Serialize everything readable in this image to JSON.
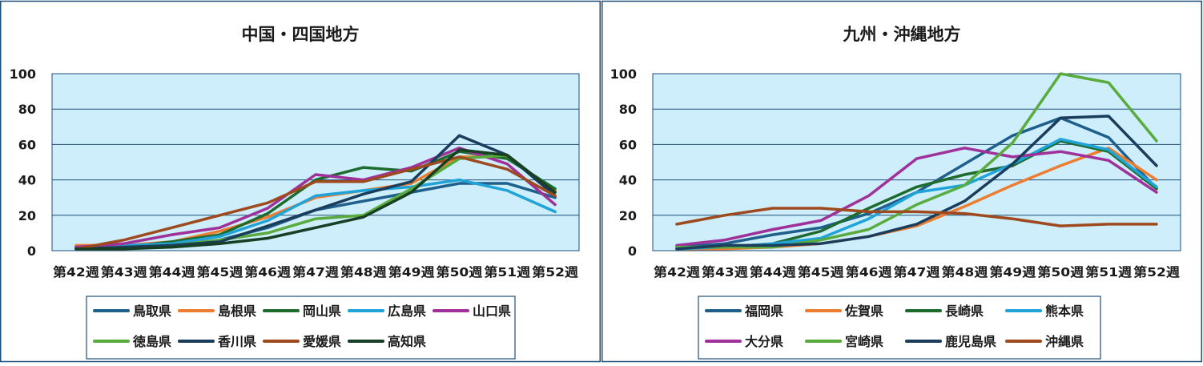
{
  "chart_data": [
    {
      "type": "line",
      "title": "中国・四国地方",
      "xlabel": "",
      "ylabel": "",
      "ylim": [
        0,
        100
      ],
      "yticks": [
        0,
        20,
        40,
        60,
        80,
        100
      ],
      "grid": true,
      "legend_position": "bottom",
      "categories": [
        "第42週",
        "第43週",
        "第44週",
        "第45週",
        "第46週",
        "第47週",
        "第48週",
        "第49週",
        "第50週",
        "第51週",
        "第52週"
      ],
      "series": [
        {
          "name": "鳥取県",
          "color": "#1f5f8b",
          "values": [
            1,
            2,
            3,
            6,
            13,
            23,
            28,
            33,
            38,
            38,
            30
          ]
        },
        {
          "name": "島根県",
          "color": "#ed7d31",
          "values": [
            3,
            3,
            5,
            11,
            19,
            30,
            34,
            38,
            53,
            53,
            34
          ]
        },
        {
          "name": "岡山県",
          "color": "#1e6b2e",
          "values": [
            1,
            2,
            5,
            9,
            21,
            40,
            47,
            45,
            56,
            52,
            35
          ]
        },
        {
          "name": "広島県",
          "color": "#1fa3d9",
          "values": [
            2,
            3,
            4,
            8,
            17,
            31,
            34,
            36,
            40,
            34,
            22
          ]
        },
        {
          "name": "山口県",
          "color": "#a0309a",
          "values": [
            2,
            4,
            9,
            13,
            24,
            43,
            40,
            47,
            58,
            49,
            26
          ]
        },
        {
          "name": "徳島県",
          "color": "#5aab3e",
          "values": [
            1,
            2,
            3,
            6,
            10,
            18,
            20,
            35,
            52,
            54,
            33
          ]
        },
        {
          "name": "香川県",
          "color": "#1b3d5c",
          "values": [
            1,
            2,
            3,
            5,
            14,
            23,
            32,
            39,
            65,
            54,
            31
          ]
        },
        {
          "name": "愛媛県",
          "color": "#9e4a1e",
          "values": [
            1,
            6,
            13,
            20,
            27,
            39,
            39,
            46,
            53,
            46,
            31
          ]
        },
        {
          "name": "高知県",
          "color": "#173f23",
          "values": [
            1,
            1,
            2,
            4,
            7,
            13,
            19,
            33,
            57,
            54,
            33
          ]
        }
      ]
    },
    {
      "type": "line",
      "title": "九州・沖縄地方",
      "xlabel": "",
      "ylabel": "",
      "ylim": [
        0,
        100
      ],
      "yticks": [
        0,
        20,
        40,
        60,
        80,
        100
      ],
      "grid": true,
      "legend_position": "bottom",
      "categories": [
        "第42週",
        "第43週",
        "第44週",
        "第45週",
        "第46週",
        "第47週",
        "第48週",
        "第49週",
        "第50週",
        "第51週",
        "第52週"
      ],
      "series": [
        {
          "name": "福岡県",
          "color": "#1f5f8b",
          "values": [
            2,
            4,
            9,
            13,
            21,
            33,
            49,
            65,
            75,
            64,
            35
          ]
        },
        {
          "name": "佐賀県",
          "color": "#ed7d31",
          "values": [
            1,
            1,
            2,
            4,
            8,
            14,
            25,
            37,
            48,
            58,
            40
          ]
        },
        {
          "name": "長崎県",
          "color": "#1e6b2e",
          "values": [
            2,
            2,
            4,
            11,
            24,
            36,
            43,
            48,
            62,
            56,
            35
          ]
        },
        {
          "name": "熊本県",
          "color": "#1fa3d9",
          "values": [
            1,
            2,
            4,
            7,
            18,
            33,
            37,
            49,
            63,
            57,
            36
          ]
        },
        {
          "name": "大分県",
          "color": "#a0309a",
          "values": [
            3,
            6,
            12,
            17,
            31,
            52,
            58,
            53,
            56,
            51,
            33
          ]
        },
        {
          "name": "宮崎県",
          "color": "#5aab3e",
          "values": [
            2,
            2,
            2,
            6,
            12,
            26,
            37,
            61,
            100,
            95,
            62
          ]
        },
        {
          "name": "鹿児島県",
          "color": "#1b3d5c",
          "values": [
            1,
            3,
            3,
            4,
            8,
            15,
            28,
            49,
            75,
            76,
            48
          ]
        },
        {
          "name": "沖縄県",
          "color": "#9e4a1e",
          "values": [
            15,
            20,
            24,
            24,
            22,
            22,
            21,
            18,
            14,
            15,
            15
          ]
        }
      ]
    }
  ]
}
